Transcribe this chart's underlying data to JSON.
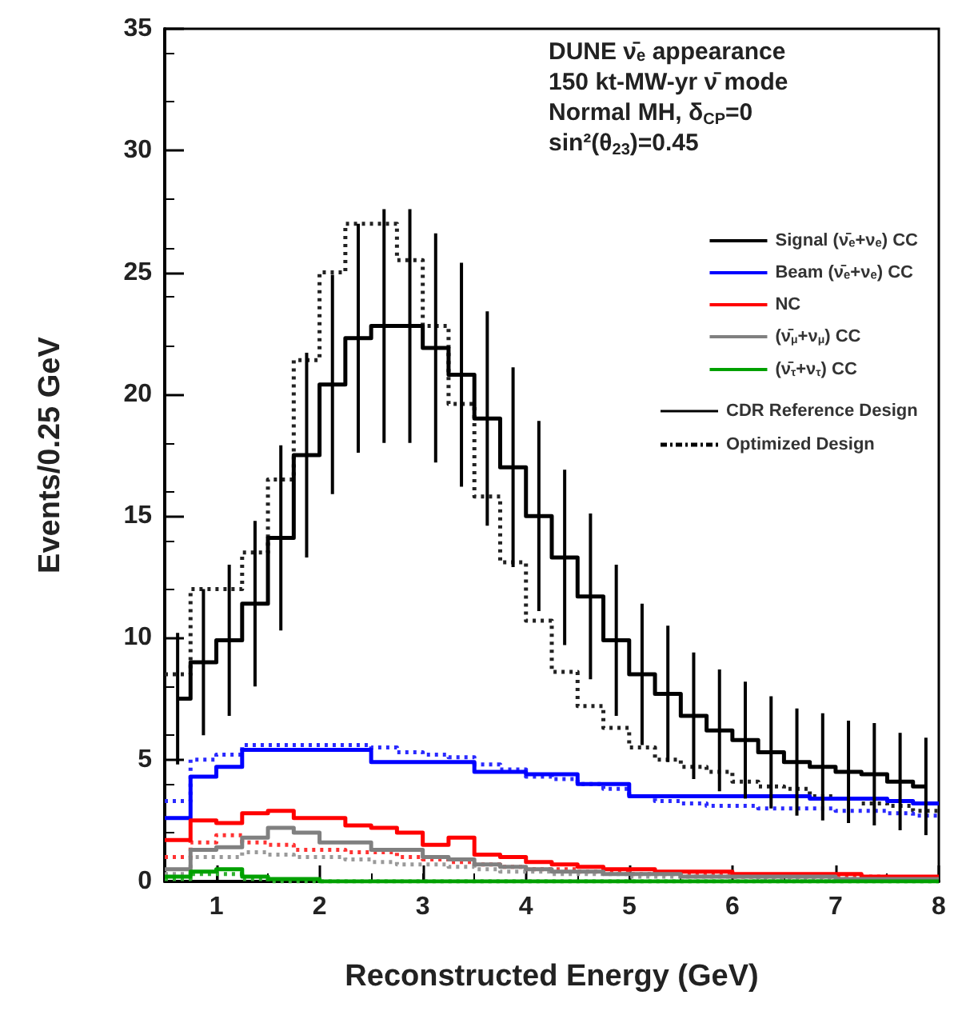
{
  "chart_data": {
    "type": "histogram",
    "title": "DUNE ν̄ₑ appearance",
    "subtitle": "150 kt-MW-yr ν̄ mode\nNormal MH, δ$_{CP}$=0\nsin²(θ$_{23}$)=0.45",
    "xlabel": "Reconstructed Energy (GeV)",
    "ylabel": "Events/0.25 GeV",
    "bins": [
      0.5,
      0.75,
      1,
      1.25,
      1.5,
      1.75,
      2,
      2.25,
      2.5,
      2.75,
      3,
      3.25,
      3.5,
      3.75,
      4,
      4.25,
      4.5,
      4.75,
      5,
      5.25,
      5.5,
      5.75,
      6,
      6.25,
      6.5,
      6.75,
      7,
      7.25,
      7.5,
      7.75,
      8
    ],
    "xlim": [
      0.5,
      8
    ],
    "xticks": [
      1,
      2,
      3,
      4,
      5,
      6,
      7,
      8
    ],
    "ylim": [
      0,
      35
    ],
    "yticks": [
      0,
      5,
      10,
      15,
      20,
      25,
      30,
      35
    ],
    "grid": false,
    "legend": "top right",
    "line_style": "solid",
    "series": [
      {
        "name": "Signal (ν̄ₑ+νₑ) CC",
        "type": "step",
        "x": [
          0.625,
          0.875,
          1.125,
          1.375,
          1.625,
          1.875,
          2.125,
          2.375,
          2.625,
          2.875,
          3.125,
          3.375,
          3.625,
          3.875,
          4.125,
          4.375,
          4.625,
          4.875,
          5.125,
          5.375,
          5.625,
          5.875,
          6.125,
          6.375,
          6.625,
          6.875,
          7.125,
          7.375,
          7.625,
          7.875
        ],
        "color": "#000000",
        "values": [
          7.5,
          9,
          9.9,
          11.4,
          14.1,
          17.5,
          20.4,
          22.3,
          22.8,
          22.8,
          21.9,
          20.8,
          19,
          17,
          15,
          13.3,
          11.7,
          9.9,
          8.5,
          7.7,
          6.8,
          6.2,
          5.8,
          5.3,
          4.9,
          4.7,
          4.5,
          4.4,
          4.1,
          3.9
        ],
        "errors": [
          2.7,
          3,
          3.1,
          3.4,
          3.8,
          4.2,
          4.5,
          4.7,
          4.8,
          4.8,
          4.7,
          4.6,
          4.4,
          4.1,
          3.9,
          3.6,
          3.4,
          3.1,
          2.9,
          2.8,
          2.6,
          2.5,
          2.4,
          2.3,
          2.2,
          2.2,
          2.1,
          2.1,
          2,
          2
        ]
      },
      {
        "name": "Beam (ν̄ₑ+νₑ) CC",
        "color": "#0000ff",
        "values": [
          2.6,
          4.3,
          4.7,
          5.4,
          5.4,
          5.4,
          5.4,
          5.4,
          4.9,
          4.9,
          4.9,
          4.9,
          4.5,
          4.5,
          4.4,
          4.4,
          4,
          4,
          3.5,
          3.5,
          3.5,
          3.5,
          3.5,
          3.5,
          3.5,
          3.4,
          3.4,
          3.4,
          3.3,
          3.2
        ]
      },
      {
        "name": "NC",
        "color": "#ff0000",
        "values": [
          1.7,
          2.5,
          2.4,
          2.8,
          2.9,
          2.6,
          2.6,
          2.3,
          2.2,
          2,
          1.5,
          1.8,
          1.1,
          1,
          0.8,
          0.7,
          0.6,
          0.5,
          0.5,
          0.4,
          0.4,
          0.4,
          0.3,
          0.3,
          0.3,
          0.3,
          0.3,
          0.2,
          0.2,
          0.2
        ]
      },
      {
        "name": "(ν̄$_{μ}$+ν$_{μ}$) CC",
        "color": "#808080",
        "values": [
          0.5,
          1.3,
          1.4,
          1.8,
          2.2,
          2,
          1.6,
          1.6,
          1.3,
          1.3,
          1,
          0.9,
          0.7,
          0.6,
          0.5,
          0.4,
          0.4,
          0.3,
          0.3,
          0.3,
          0.2,
          0.2,
          0.2,
          0.2,
          0.2,
          0.2,
          0.1,
          0.1,
          0.1,
          0.1
        ]
      },
      {
        "name": "(ν̄$_{τ}$+ν$_{τ}$) CC",
        "color": "#00a000",
        "values": [
          0.2,
          0.4,
          0.5,
          0.2,
          0.1,
          0.1,
          0,
          0,
          0,
          0,
          0,
          0,
          0,
          0,
          0,
          0,
          0,
          0,
          0,
          0,
          0,
          0,
          0,
          0,
          0,
          0,
          0,
          0,
          0,
          0
        ]
      },
      {
        "color": "#222222",
        "line_style": "dotted",
        "values": [
          8.5,
          12,
          12,
          13.5,
          16.5,
          21.4,
          25,
          27,
          27,
          25.5,
          22.8,
          19.6,
          15.8,
          13.1,
          10.7,
          8.6,
          7.2,
          6.3,
          5.5,
          5,
          4.7,
          4.5,
          4.1,
          3.9,
          3.8,
          3.5,
          3.4,
          3.2,
          3.1,
          2.9
        ]
      },
      {
        "color": "#2a2aff",
        "line_style": "dotted",
        "values": [
          3.3,
          5,
          5.2,
          5.6,
          5.6,
          5.6,
          5.6,
          5.6,
          5.5,
          5.3,
          5.2,
          5.1,
          4.8,
          4.6,
          4.3,
          4.2,
          4,
          3.8,
          3.5,
          3.3,
          3.2,
          3.1,
          3.1,
          3,
          3,
          3,
          2.9,
          2.9,
          2.8,
          2.7
        ]
      },
      {
        "color": "#ff3333",
        "line_style": "dotted",
        "values": [
          1,
          1.6,
          1.9,
          1.6,
          1.5,
          1.3,
          1.3,
          1.2,
          1.2,
          1,
          0.9,
          0.8,
          0.7,
          0.6,
          0.5,
          0.5,
          0.4,
          0.4,
          0.3,
          0.3,
          0.3,
          0.3,
          0.2,
          0.2,
          0.2,
          0.2,
          0.2,
          0.2,
          0.1,
          0.1
        ]
      },
      {
        "color": "#9a9a9a",
        "line_style": "dotted",
        "values": [
          0.3,
          1,
          1,
          1.2,
          1.1,
          1,
          1,
          0.9,
          0.8,
          0.7,
          0.7,
          0.6,
          0.5,
          0.4,
          0.4,
          0.3,
          0.3,
          0.3,
          0.2,
          0.2,
          0.2,
          0.2,
          0.2,
          0.1,
          0.1,
          0.1,
          0.1,
          0.1,
          0.1,
          0.1
        ]
      },
      {
        "color": "#30b030",
        "line_style": "dotted",
        "values": [
          0.1,
          0.3,
          0.3,
          0.1,
          0,
          0,
          0,
          0,
          0,
          0,
          0,
          0,
          0,
          0,
          0,
          0,
          0,
          0,
          0,
          0,
          0,
          0,
          0,
          0,
          0,
          0,
          0,
          0,
          0,
          0
        ]
      }
    ],
    "annotations": [
      "CDR Reference Design",
      "Optimized Design"
    ]
  }
}
